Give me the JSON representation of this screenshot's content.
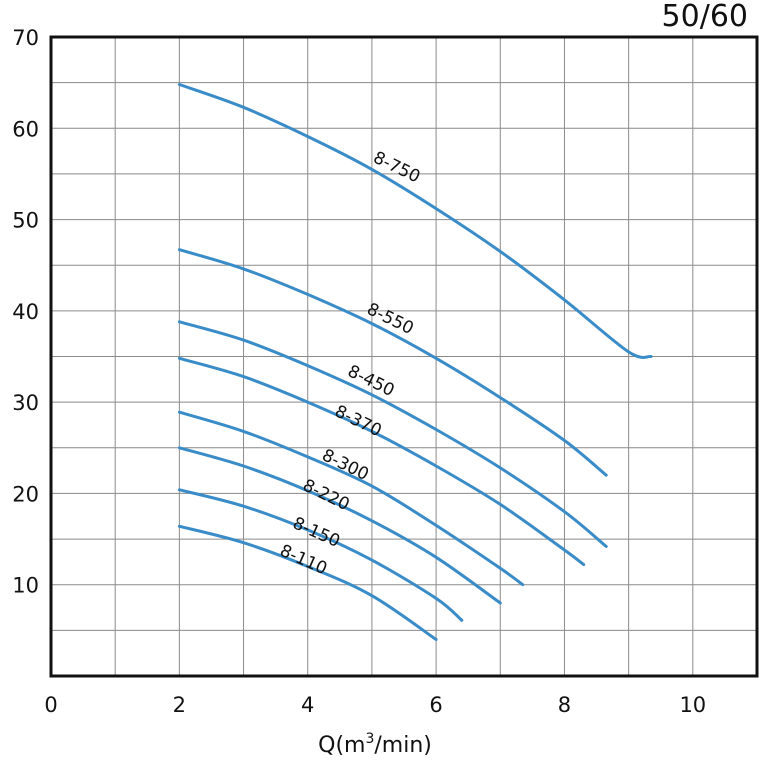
{
  "corner_label": "50/60",
  "chart_data": {
    "type": "line",
    "title": "",
    "xlabel_prefix": "Q(m",
    "xlabel_sup": "3",
    "xlabel_suffix": "/min)",
    "ylabel": "",
    "xlim": [
      0,
      11
    ],
    "ylim": [
      0,
      70
    ],
    "x_ticks": [
      "0",
      "2",
      "4",
      "6",
      "8",
      "10"
    ],
    "y_ticks": [
      "10",
      "20",
      "30",
      "40",
      "50",
      "60",
      "70"
    ],
    "grid": true,
    "line_color": "#3a8cc9",
    "series": [
      {
        "name": "8-750",
        "x": [
          2,
          3,
          4,
          5,
          6,
          7,
          8,
          9,
          9.35
        ],
        "y": [
          64.8,
          62.3,
          59.1,
          55.5,
          51.2,
          46.5,
          41.2,
          35.5,
          35
        ]
      },
      {
        "name": "8-550",
        "x": [
          2,
          3,
          4,
          5,
          6,
          7,
          8,
          8.65
        ],
        "y": [
          46.7,
          44.6,
          41.8,
          38.6,
          34.8,
          30.5,
          25.8,
          22
        ]
      },
      {
        "name": "8-450",
        "x": [
          2,
          3,
          4,
          5,
          6,
          7,
          8,
          8.65
        ],
        "y": [
          38.8,
          36.8,
          34.0,
          30.8,
          27.0,
          22.8,
          18.0,
          14.2
        ]
      },
      {
        "name": "8-370",
        "x": [
          2,
          3,
          4,
          5,
          6,
          7,
          8,
          8.3
        ],
        "y": [
          34.8,
          32.8,
          30.0,
          26.8,
          23.0,
          18.8,
          13.8,
          12.2
        ]
      },
      {
        "name": "8-300",
        "x": [
          2,
          3,
          4,
          5,
          6,
          7,
          7.35
        ],
        "y": [
          28.9,
          26.8,
          24.0,
          20.8,
          16.5,
          11.8,
          10
        ]
      },
      {
        "name": "8-220",
        "x": [
          2,
          3,
          4,
          5,
          6,
          7
        ],
        "y": [
          25.0,
          23.0,
          20.3,
          17.0,
          13.0,
          8.0
        ]
      },
      {
        "name": "8-150",
        "x": [
          2,
          3,
          4,
          5,
          6,
          6.4
        ],
        "y": [
          20.4,
          18.6,
          16.0,
          12.7,
          8.5,
          6.1
        ]
      },
      {
        "name": "8-110",
        "x": [
          2,
          3,
          4,
          5,
          6
        ],
        "y": [
          16.4,
          14.6,
          12.0,
          8.8,
          4.0
        ]
      }
    ],
    "annotations": [
      {
        "text": "8-750",
        "x": 5.35,
        "y": 55.2,
        "rotate": 26
      },
      {
        "text": "8-550",
        "x": 5.25,
        "y": 38.6,
        "rotate": 26
      },
      {
        "text": "8-450",
        "x": 4.95,
        "y": 31.8,
        "rotate": 26
      },
      {
        "text": "8-370",
        "x": 4.75,
        "y": 27.4,
        "rotate": 26
      },
      {
        "text": "8-300",
        "x": 4.55,
        "y": 22.6,
        "rotate": 26
      },
      {
        "text": "8-220",
        "x": 4.25,
        "y": 19.3,
        "rotate": 26
      },
      {
        "text": "8-150",
        "x": 4.1,
        "y": 15.2,
        "rotate": 24
      },
      {
        "text": "8-110",
        "x": 3.9,
        "y": 12.2,
        "rotate": 24
      }
    ]
  }
}
